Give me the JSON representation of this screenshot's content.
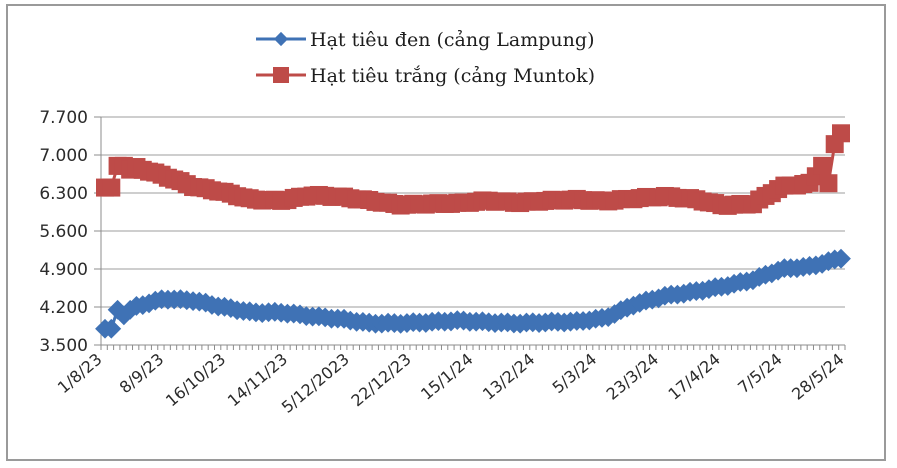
{
  "chart_data": {
    "type": "line",
    "title": "",
    "xlabel": "",
    "ylabel": "",
    "ylim": [
      3500,
      7700
    ],
    "y_ticks": [
      "7.700",
      "7.000",
      "6.300",
      "5.600",
      "4.900",
      "4.200",
      "3.500"
    ],
    "y_tick_values": [
      7700,
      7000,
      6300,
      5600,
      4900,
      4200,
      3500
    ],
    "grid": "horizontal",
    "legend_position": "top",
    "x_tick_labels": [
      "1/8/23",
      "8/9/23",
      "16/10/23",
      "14/11/23",
      "5/12/2023",
      "22/12/23",
      "15/1/24",
      "13/2/24",
      "5/3/24",
      "23/3/24",
      "17/4/24",
      "7/5/24",
      "28/5/24"
    ],
    "x": [
      "1/8/23",
      "~15/8/23",
      "8/9/23",
      "~25/9/23",
      "16/10/23",
      "~1/11/23",
      "14/11/23",
      "~24/11/23",
      "5/12/2023",
      "~14/12/23",
      "22/12/23",
      "~5/1/24",
      "15/1/24",
      "~1/2/24",
      "13/2/24",
      "~22/2/24",
      "5/3/24",
      "~14/3/24",
      "23/3/24",
      "~5/4/24",
      "17/4/24",
      "~27/4/24",
      "7/5/24",
      "~17/5/24",
      "~24/5/24",
      "28/5/24"
    ],
    "series": [
      {
        "name": "Hạt tiêu đen (cảng Lampung)",
        "color": "#3f72b5",
        "marker": "diamond",
        "values": [
          3800,
          4200,
          4350,
          4320,
          4200,
          4100,
          4100,
          4030,
          3980,
          3900,
          3900,
          3920,
          3950,
          3920,
          3900,
          3920,
          3930,
          4000,
          4250,
          4400,
          4480,
          4580,
          4700,
          4900,
          4950,
          5100
        ]
      },
      {
        "name": "Hạt tiêu trắng (cảng Muntok)",
        "color": "#be4b48",
        "marker": "square",
        "values": [
          6400,
          6780,
          6620,
          6420,
          6320,
          6180,
          6160,
          6260,
          6230,
          6160,
          6080,
          6100,
          6110,
          6160,
          6120,
          6160,
          6180,
          6150,
          6200,
          6240,
          6190,
          6070,
          6100,
          6420,
          6480,
          7400
        ]
      }
    ]
  },
  "legend": {
    "items": [
      {
        "label": "Hạt tiêu đen (cảng Lampung)",
        "color": "#3f72b5",
        "marker": "diamond"
      },
      {
        "label": "Hạt tiêu trắng (cảng Muntok)",
        "color": "#be4b48",
        "marker": "square"
      }
    ]
  },
  "colors": {
    "black_pepper": "#3f72b5",
    "white_pepper": "#be4b48",
    "grid": "#bdbdbd",
    "axis": "#8c8c8c"
  }
}
